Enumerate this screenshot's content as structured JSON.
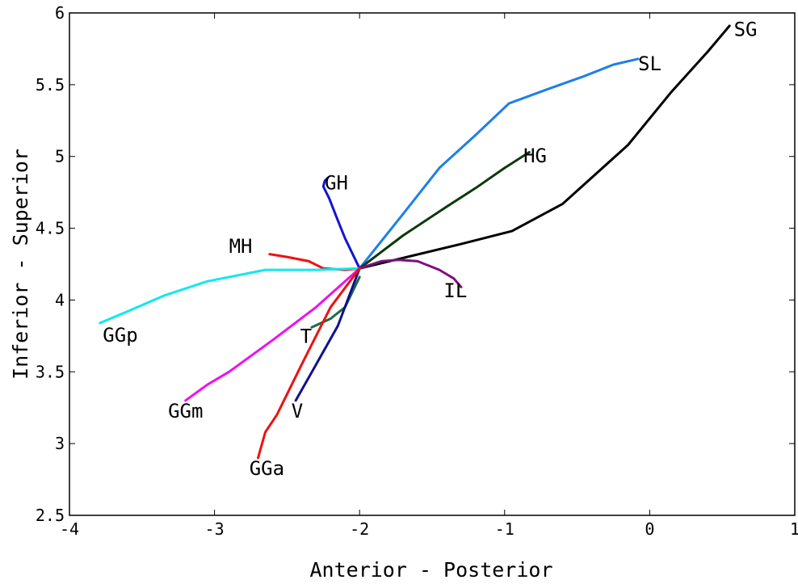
{
  "chart_data": {
    "type": "line",
    "xlabel": "Anterior - Posterior",
    "ylabel": "Inferior - Superior",
    "xlim": [
      -4,
      1
    ],
    "ylim": [
      2.5,
      6
    ],
    "xticks": [
      -4,
      -3,
      -2,
      -1,
      0,
      1
    ],
    "yticks": [
      2.5,
      3,
      3.5,
      4,
      4.5,
      5,
      5.5,
      6
    ],
    "xtick_labels": [
      "-4",
      "-3",
      "-2",
      "-1",
      "0",
      "1"
    ],
    "ytick_labels": [
      "2.5",
      "3",
      "3.5",
      "4",
      "4.5",
      "5",
      "5.5",
      "6"
    ],
    "grid": false,
    "series": [
      {
        "name": "SG",
        "color": "#000000",
        "x": [
          -2.0,
          -1.3,
          -0.95,
          -0.6,
          -0.15,
          0.15,
          0.4,
          0.55
        ],
        "y": [
          4.22,
          4.39,
          4.48,
          4.67,
          5.08,
          5.45,
          5.73,
          5.91
        ],
        "label_x": 0.58,
        "label_y": 5.84
      },
      {
        "name": "SL",
        "color": "#1e7fe8",
        "x": [
          -2.0,
          -1.7,
          -1.45,
          -1.2,
          -0.97,
          -0.7,
          -0.45,
          -0.25,
          -0.08
        ],
        "y": [
          4.22,
          4.6,
          4.92,
          5.15,
          5.37,
          5.47,
          5.56,
          5.64,
          5.68
        ],
        "label_x": -0.08,
        "label_y": 5.6
      },
      {
        "name": "HG",
        "color": "#0a3a0a",
        "x": [
          -2.0,
          -1.7,
          -1.4,
          -1.2,
          -1.0,
          -0.83
        ],
        "y": [
          4.22,
          4.45,
          4.65,
          4.78,
          4.92,
          5.03
        ],
        "label_x": -0.87,
        "label_y": 4.96
      },
      {
        "name": "GH",
        "color": "#1414d2",
        "x": [
          -2.0,
          -2.1,
          -2.16,
          -2.21,
          -2.25,
          -2.24,
          -2.22
        ],
        "y": [
          4.22,
          4.43,
          4.58,
          4.71,
          4.79,
          4.83,
          4.85
        ],
        "label_x": -2.24,
        "label_y": 4.77
      },
      {
        "name": "MH",
        "color": "#ee1111",
        "x": [
          -2.0,
          -2.1,
          -2.25,
          -2.35,
          -2.5,
          -2.62
        ],
        "y": [
          4.22,
          4.21,
          4.22,
          4.27,
          4.3,
          4.32
        ],
        "label_x": -2.9,
        "label_y": 4.33
      },
      {
        "name": "IL",
        "color": "#7f0f7f",
        "x": [
          -2.0,
          -1.85,
          -1.73,
          -1.6,
          -1.45,
          -1.35,
          -1.3
        ],
        "y": [
          4.22,
          4.27,
          4.28,
          4.27,
          4.21,
          4.15,
          4.09
        ],
        "label_x": -1.42,
        "label_y": 4.02
      },
      {
        "name": "GGp",
        "color": "#11e8ee",
        "x": [
          -2.0,
          -2.3,
          -2.65,
          -3.05,
          -3.35,
          -3.6,
          -3.79
        ],
        "y": [
          4.22,
          4.21,
          4.21,
          4.13,
          4.03,
          3.92,
          3.84
        ],
        "label_x": -3.77,
        "label_y": 3.71
      },
      {
        "name": "T",
        "color": "#1d6b45",
        "x": [
          -2.0,
          -2.1,
          -2.2,
          -2.33
        ],
        "y": [
          4.16,
          3.95,
          3.87,
          3.81
        ],
        "label_x": -2.41,
        "label_y": 3.7
      },
      {
        "name": "GGm",
        "color": "#ee11ee",
        "x": [
          -2.0,
          -2.3,
          -2.6,
          -2.9,
          -3.05,
          -3.2
        ],
        "y": [
          4.22,
          3.95,
          3.72,
          3.5,
          3.41,
          3.3
        ],
        "label_x": -3.32,
        "label_y": 3.18
      },
      {
        "name": "V",
        "color": "#101090",
        "x": [
          -2.0,
          -2.15,
          -2.3,
          -2.44
        ],
        "y": [
          4.22,
          3.82,
          3.55,
          3.3
        ],
        "label_x": -2.47,
        "label_y": 3.18
      },
      {
        "name": "GGa",
        "color": "#ee1111",
        "x": [
          -2.0,
          -2.2,
          -2.4,
          -2.57,
          -2.65,
          -2.7
        ],
        "y": [
          4.22,
          3.95,
          3.55,
          3.2,
          3.08,
          2.9
        ],
        "label_x": -2.76,
        "label_y": 2.78
      }
    ]
  }
}
